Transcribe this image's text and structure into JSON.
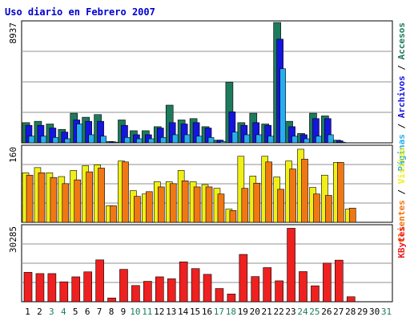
{
  "chart_data": {
    "type": "bar",
    "title": "Uso diario en Febrero 2007",
    "categories": [
      "1",
      "2",
      "3",
      "4",
      "5",
      "6",
      "7",
      "8",
      "9",
      "10",
      "11",
      "12",
      "13",
      "14",
      "15",
      "16",
      "17",
      "18",
      "19",
      "20",
      "21",
      "22",
      "23",
      "24",
      "25",
      "26",
      "27",
      "28",
      "29",
      "30",
      "31"
    ],
    "weekend_days": [
      "3",
      "4",
      "10",
      "11",
      "17",
      "18",
      "24",
      "25",
      "31"
    ],
    "panels": [
      {
        "max_label": "8937",
        "ylim": [
          0,
          8937
        ],
        "legend": [
          "Páginas",
          "Archivos",
          "Accesos"
        ],
        "series": [
          {
            "name": "Accesos",
            "color": "#1e7a5c",
            "values": [
              1500,
              1600,
              1400,
              1000,
              2200,
              1900,
              2100,
              100,
              1700,
              900,
              900,
              1200,
              2800,
              1700,
              1800,
              1200,
              200,
              4500,
              1500,
              2200,
              1400,
              9000,
              1600,
              700,
              2200,
              2000,
              200,
              0,
              0,
              0,
              0
            ]
          },
          {
            "name": "Archivos",
            "color": "#1515e0",
            "values": [
              1300,
              1300,
              1100,
              800,
              1700,
              1600,
              1600,
              80,
              1300,
              600,
              600,
              1100,
              1500,
              1400,
              1500,
              1100,
              200,
              2300,
              1300,
              1500,
              1300,
              7700,
              1200,
              600,
              1800,
              1800,
              150,
              0,
              0,
              0,
              0
            ]
          },
          {
            "name": "Páginas",
            "color": "#28aef0",
            "values": [
              500,
              500,
              400,
              300,
              1400,
              600,
              500,
              50,
              400,
              300,
              300,
              400,
              600,
              600,
              500,
              400,
              100,
              800,
              600,
              600,
              500,
              5500,
              500,
              300,
              500,
              600,
              50,
              0,
              0,
              0,
              0
            ]
          }
        ]
      },
      {
        "max_label": "160",
        "ylim": [
          0,
          160
        ],
        "legend": [
          "Clientes",
          "Visitas"
        ],
        "series": [
          {
            "name": "Clientes",
            "color": "#f0f018",
            "values": [
              105,
              116,
              105,
              97,
              110,
              120,
              122,
              35,
              130,
              67,
              60,
              86,
              86,
              110,
              86,
              80,
              72,
              28,
              140,
              98,
              140,
              96,
              130,
              155,
              74,
              100,
              127,
              28,
              0,
              0,
              0
            ]
          },
          {
            "name": "Visitas",
            "color": "#f07814",
            "values": [
              100,
              105,
              95,
              82,
              90,
              107,
              115,
              35,
              128,
              55,
              65,
              75,
              82,
              88,
              75,
              75,
              60,
              25,
              72,
              83,
              128,
              70,
              113,
              134,
              60,
              57,
              127,
              30,
              0,
              0,
              0
            ]
          }
        ]
      },
      {
        "max_label": "30285",
        "ylim": [
          0,
          30285
        ],
        "legend": [
          "KBytes"
        ],
        "series": [
          {
            "name": "KBytes",
            "color": "#ee2020",
            "values": [
              11800,
              11300,
              11300,
              8000,
              10000,
              12000,
              16800,
              1500,
              13000,
              6500,
              8200,
              10000,
              9200,
              16000,
              13300,
              11000,
              5300,
              3100,
              19000,
              10100,
              13700,
              8400,
              29500,
              12100,
              6400,
              15500,
              16700,
              2000,
              0,
              0,
              0
            ]
          }
        ]
      }
    ]
  }
}
